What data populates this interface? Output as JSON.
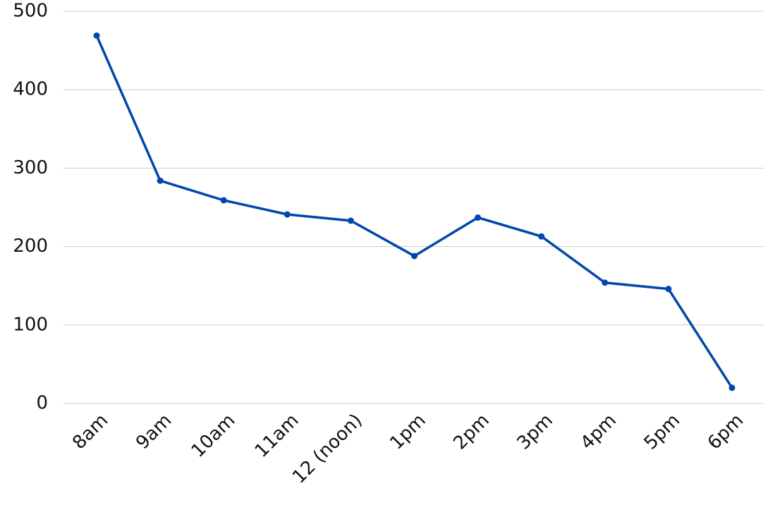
{
  "chart_data": {
    "type": "line",
    "categories": [
      "8am",
      "9am",
      "10am",
      "11am",
      "12 (noon)",
      "1pm",
      "2pm",
      "3pm",
      "4pm",
      "5pm",
      "6pm"
    ],
    "values": [
      469,
      284,
      259,
      241,
      233,
      188,
      237,
      213,
      154,
      146,
      20
    ],
    "color": "#0047ab",
    "ylim": [
      0,
      500
    ],
    "yticks": [
      0,
      100,
      200,
      300,
      400,
      500
    ],
    "grid": true
  }
}
